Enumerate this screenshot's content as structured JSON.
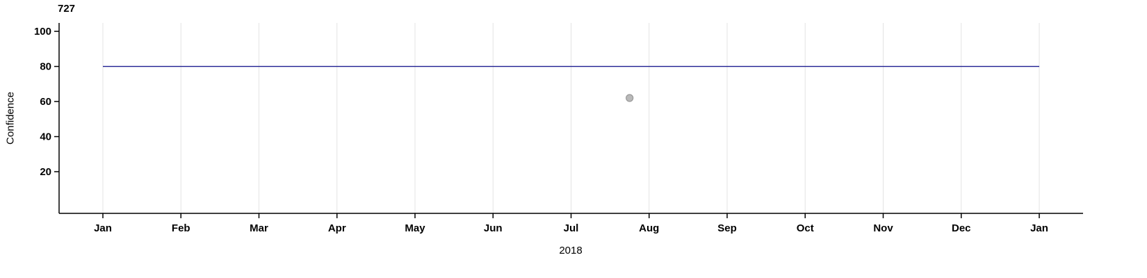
{
  "chart_data": {
    "type": "line",
    "title": "727",
    "xlabel": "2018",
    "ylabel": "Confidence",
    "x_ticks": [
      "Jan",
      "Feb",
      "Mar",
      "Apr",
      "May",
      "Jun",
      "Jul",
      "Aug",
      "Sep",
      "Oct",
      "Nov",
      "Dec",
      "Jan"
    ],
    "y_ticks": [
      20,
      40,
      60,
      80,
      100
    ],
    "ylim": [
      0,
      105
    ],
    "grid": "vertical-only",
    "legend": "none",
    "colors": {
      "line": "#1c1c8f",
      "point_fill": "#b9b9b9",
      "point_stroke": "#999999",
      "gridline": "#e3e3e3",
      "axis": "#000000"
    },
    "series": [
      {
        "name": "confidence-threshold-line",
        "type": "line",
        "points": [
          [
            0,
            80
          ],
          [
            12,
            80
          ]
        ]
      },
      {
        "name": "confidence-observation-point",
        "type": "scatter",
        "points": [
          [
            6.75,
            62
          ]
        ]
      }
    ]
  }
}
